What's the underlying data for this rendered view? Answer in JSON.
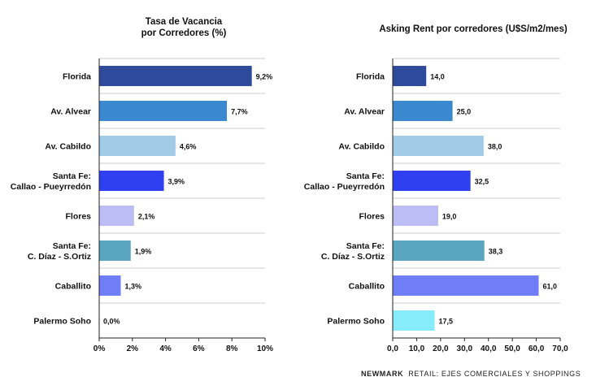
{
  "colors": [
    "#2e4b9b",
    "#3a88cf",
    "#a2cbe7",
    "#2e40f0",
    "#bcbdf5",
    "#5aa5bf",
    "#6f7ef7",
    "#86ecfb"
  ],
  "footer": {
    "brand": "NEWMARK",
    "text": "RETAIL: EJES COMERCIALES Y SHOPPINGS"
  },
  "chart_data": [
    {
      "type": "bar",
      "orientation": "horizontal",
      "title": [
        "Tasa de Vacancia",
        "por Corredores (%)"
      ],
      "categories": [
        [
          "Florida"
        ],
        [
          "Av. Alvear"
        ],
        [
          "Av. Cabildo"
        ],
        [
          "Santa Fe:",
          "Callao - Pueyrredón"
        ],
        [
          "Flores"
        ],
        [
          "Santa Fe:",
          "C. Díaz - S.Ortiz"
        ],
        [
          "Caballito"
        ],
        [
          "Palermo Soho"
        ]
      ],
      "values": [
        9.2,
        7.7,
        4.6,
        3.9,
        2.1,
        1.9,
        1.3,
        0.0
      ],
      "value_labels": [
        "9,2%",
        "7,7%",
        "4,6%",
        "3,9%",
        "2,1%",
        "1,9%",
        "1,3%",
        "0,0%"
      ],
      "xlim": [
        0,
        10
      ],
      "xticks": [
        0,
        2,
        4,
        6,
        8,
        10
      ],
      "xtick_labels": [
        "0%",
        "2%",
        "4%",
        "6%",
        "8%",
        "10%"
      ],
      "grid": "horizontal separators"
    },
    {
      "type": "bar",
      "orientation": "horizontal",
      "title": [
        "Asking Rent por corredores (U$S/m2/mes)"
      ],
      "categories": [
        [
          "Florida"
        ],
        [
          "Av. Alvear"
        ],
        [
          "Av. Cabildo"
        ],
        [
          "Santa Fe:",
          "Callao - Pueyrredón"
        ],
        [
          "Flores"
        ],
        [
          "Santa Fe:",
          "C. Díaz - S.Ortiz"
        ],
        [
          "Caballito"
        ],
        [
          "Palermo Soho"
        ]
      ],
      "values": [
        14.0,
        25.0,
        38.0,
        32.5,
        19.0,
        38.3,
        61.0,
        17.5
      ],
      "value_labels": [
        "14,0",
        "25,0",
        "38,0",
        "32,5",
        "19,0",
        "38,3",
        "61,0",
        "17,5"
      ],
      "xlim": [
        0,
        70
      ],
      "xticks": [
        0,
        10,
        20,
        30,
        40,
        50,
        60,
        70
      ],
      "xtick_labels": [
        "0,0",
        "10,0",
        "20,0",
        "30,0",
        "40,0",
        "50,0",
        "60,0",
        "70,0"
      ],
      "grid": "horizontal separators"
    }
  ]
}
